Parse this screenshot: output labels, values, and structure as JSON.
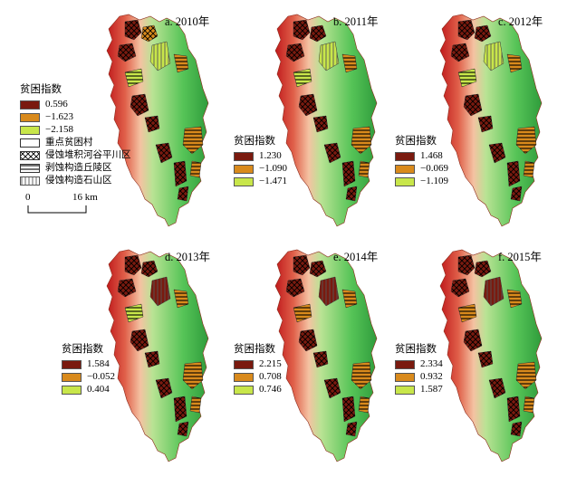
{
  "panels": [
    {
      "label": "a. 2010年",
      "legend_title": "贫困指数",
      "classes": [
        "0.596",
        "−1.623",
        "−2.158"
      ]
    },
    {
      "label": "b. 2011年",
      "legend_title": "贫困指数",
      "classes": [
        "1.230",
        "−1.090",
        "−1.471"
      ]
    },
    {
      "label": "c. 2012年",
      "legend_title": "贫困指数",
      "classes": [
        "1.468",
        "−0.069",
        "−1.109"
      ]
    },
    {
      "label": "d. 2013年",
      "legend_title": "贫困指数",
      "classes": [
        "1.584",
        "−0.052",
        "0.404"
      ]
    },
    {
      "label": "e. 2014年",
      "legend_title": "贫困指数",
      "classes": [
        "2.215",
        "0.708",
        "0.746"
      ]
    },
    {
      "label": "f. 2015年",
      "legend_title": "贫困指数",
      "classes": [
        "2.334",
        "0.932",
        "1.587"
      ]
    }
  ],
  "class_colors": [
    "#7a1a0f",
    "#d98a1c",
    "#c8e64a"
  ],
  "extra_legend": [
    {
      "label": "重点贫困村",
      "symbol": "outline"
    },
    {
      "label": "侵蚀堆积河谷平川区",
      "symbol": "crosshatch"
    },
    {
      "label": "剥蚀构造丘陵区",
      "symbol": "horizontal-lines"
    },
    {
      "label": "侵蚀构造石山区",
      "symbol": "vertical-lines"
    }
  ],
  "scale": {
    "start": "0",
    "end": "16 km"
  },
  "terrain_colors": [
    "#c8171b",
    "#e36a4d",
    "#f2b48d",
    "#9ed67a",
    "#4fbf4f",
    "#2e9e3a"
  ]
}
